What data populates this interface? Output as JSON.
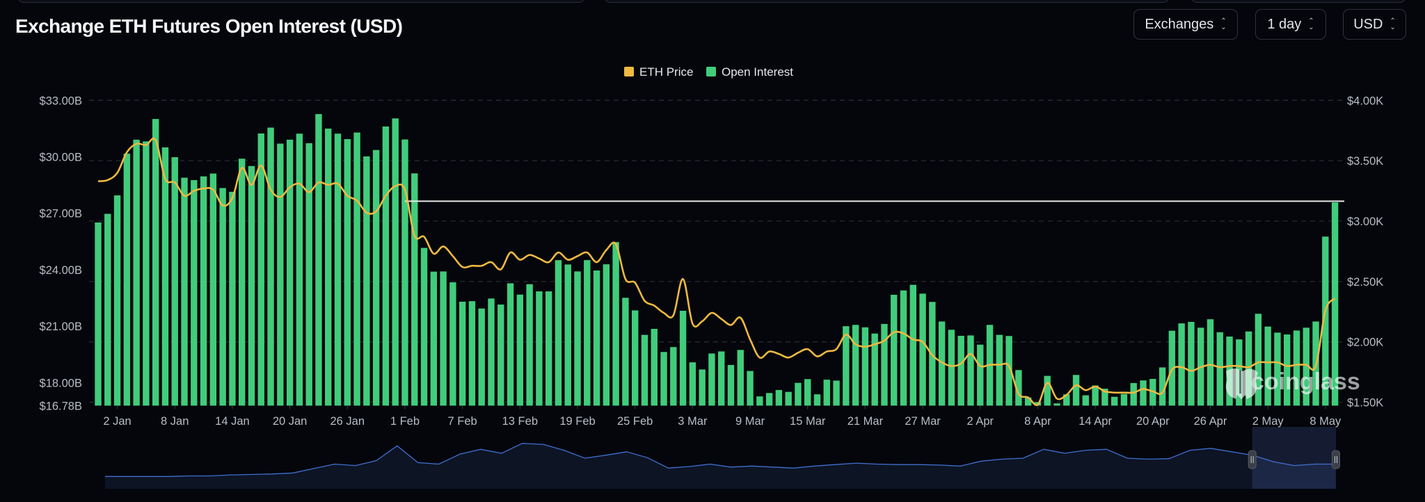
{
  "header": {
    "title": "Exchange ETH Futures Open Interest (USD)",
    "selects": [
      {
        "label": "Exchanges",
        "icon": "up-down-chevron-icon"
      },
      {
        "label": "1 day",
        "icon": "up-down-chevron-icon"
      },
      {
        "label": "USD",
        "icon": "up-down-chevron-icon"
      }
    ]
  },
  "watermark": "coinglass",
  "colors": {
    "background": "#04060b",
    "open_interest": "#41cc7b",
    "eth_price": "#f0b941",
    "reference_line": "#e8e8e8",
    "navigator_line": "#3f6fd1",
    "navigator_fill": "#0d1424"
  },
  "chart_data": {
    "type": "bar",
    "title": "Exchange ETH Futures Open Interest (USD)",
    "legend": {
      "placement": "top-center",
      "items": [
        "ETH Price",
        "Open Interest"
      ]
    },
    "grid": true,
    "categories": [
      "31 Dec",
      "1 Jan",
      "2 Jan",
      "3 Jan",
      "4 Jan",
      "5 Jan",
      "6 Jan",
      "7 Jan",
      "8 Jan",
      "9 Jan",
      "10 Jan",
      "11 Jan",
      "12 Jan",
      "13 Jan",
      "14 Jan",
      "15 Jan",
      "16 Jan",
      "17 Jan",
      "18 Jan",
      "19 Jan",
      "20 Jan",
      "21 Jan",
      "22 Jan",
      "23 Jan",
      "24 Jan",
      "25 Jan",
      "26 Jan",
      "27 Jan",
      "28 Jan",
      "29 Jan",
      "30 Jan",
      "31 Jan",
      "1 Feb",
      "2 Feb",
      "3 Feb",
      "4 Feb",
      "5 Feb",
      "6 Feb",
      "7 Feb",
      "8 Feb",
      "9 Feb",
      "10 Feb",
      "11 Feb",
      "12 Feb",
      "13 Feb",
      "14 Feb",
      "15 Feb",
      "16 Feb",
      "17 Feb",
      "18 Feb",
      "19 Feb",
      "20 Feb",
      "21 Feb",
      "22 Feb",
      "23 Feb",
      "24 Feb",
      "25 Feb",
      "26 Feb",
      "27 Feb",
      "28 Feb",
      "1 Mar",
      "2 Mar",
      "3 Mar",
      "4 Mar",
      "5 Mar",
      "6 Mar",
      "7 Mar",
      "8 Mar",
      "9 Mar",
      "10 Mar",
      "11 Mar",
      "12 Mar",
      "13 Mar",
      "14 Mar",
      "15 Mar",
      "16 Mar",
      "17 Mar",
      "18 Mar",
      "19 Mar",
      "20 Mar",
      "21 Mar",
      "22 Mar",
      "23 Mar",
      "24 Mar",
      "25 Mar",
      "26 Mar",
      "27 Mar",
      "28 Mar",
      "29 Mar",
      "30 Mar",
      "31 Mar",
      "1 Apr",
      "2 Apr",
      "3 Apr",
      "4 Apr",
      "5 Apr",
      "6 Apr",
      "7 Apr",
      "8 Apr",
      "9 Apr",
      "10 Apr",
      "11 Apr",
      "12 Apr",
      "13 Apr",
      "14 Apr",
      "15 Apr",
      "16 Apr",
      "17 Apr",
      "18 Apr",
      "19 Apr",
      "20 Apr",
      "21 Apr",
      "22 Apr",
      "23 Apr",
      "24 Apr",
      "25 Apr",
      "26 Apr",
      "27 Apr",
      "28 Apr",
      "29 Apr",
      "30 Apr",
      "1 May",
      "2 May",
      "3 May",
      "4 May",
      "5 May",
      "6 May",
      "7 May",
      "8 May",
      "9 May"
    ],
    "x_tick_labels": [
      "2 Jan",
      "8 Jan",
      "14 Jan",
      "20 Jan",
      "26 Jan",
      "1 Feb",
      "7 Feb",
      "13 Feb",
      "19 Feb",
      "25 Feb",
      "3 Mar",
      "9 Mar",
      "15 Mar",
      "21 Mar",
      "27 Mar",
      "2 Apr",
      "8 Apr",
      "14 Apr",
      "20 Apr",
      "26 Apr",
      "2 May",
      "8 May"
    ],
    "y_left": {
      "unit": "USD billions",
      "range": [
        16.78,
        33.0
      ],
      "tick_values": [
        33,
        30,
        27,
        24,
        21,
        18,
        16.78
      ],
      "tick_labels": [
        "$33.00B",
        "$30.00B",
        "$27.00B",
        "$24.00B",
        "$21.00B",
        "$18.00B",
        "$16.78B"
      ]
    },
    "y_right": {
      "unit": "USD thousands",
      "range": [
        1.472,
        4.0
      ],
      "tick_values": [
        4.0,
        3.5,
        3.0,
        2.5,
        2.0,
        1.5
      ],
      "tick_labels": [
        "$4.00K",
        "$3.50K",
        "$3.00K",
        "$2.50K",
        "$2.00K",
        "$1.50K"
      ]
    },
    "reference_line": {
      "value": 27.64,
      "axis": "left",
      "from_category": "1 Feb"
    },
    "series": [
      {
        "name": "Open Interest",
        "type": "bar",
        "axis": "left",
        "values": [
          26.51,
          26.97,
          27.95,
          30.17,
          30.91,
          30.82,
          32.01,
          30.5,
          29.98,
          28.89,
          28.76,
          28.96,
          29.11,
          28.34,
          28.14,
          29.9,
          29.51,
          31.24,
          31.55,
          30.7,
          30.91,
          31.23,
          30.72,
          32.27,
          31.5,
          31.23,
          30.94,
          31.29,
          30.02,
          30.36,
          31.61,
          32.04,
          30.92,
          29.12,
          25.16,
          23.9,
          23.91,
          23.33,
          22.3,
          22.33,
          21.94,
          22.47,
          22.15,
          23.28,
          22.68,
          23.23,
          22.85,
          22.85,
          24.51,
          24.28,
          23.91,
          24.51,
          23.96,
          24.29,
          25.47,
          22.51,
          21.84,
          20.54,
          20.86,
          19.63,
          19.89,
          21.82,
          19.08,
          18.7,
          19.55,
          19.66,
          18.94,
          19.74,
          18.62,
          17.27,
          17.45,
          17.61,
          17.51,
          17.99,
          18.19,
          17.38,
          18.16,
          18.11,
          21.0,
          21.07,
          20.94,
          20.61,
          21.12,
          22.67,
          22.9,
          23.2,
          22.73,
          22.29,
          21.25,
          20.81,
          20.49,
          20.51,
          20.02,
          21.07,
          20.54,
          20.48,
          18.67,
          17.21,
          16.97,
          18.36,
          16.9,
          17.38,
          18.41,
          17.33,
          17.85,
          17.68,
          17.25,
          17.4,
          17.98,
          18.12,
          18.2,
          18.81,
          20.76,
          21.15,
          21.23,
          20.92,
          21.37,
          20.68,
          20.45,
          20.3,
          20.72,
          21.66,
          20.98,
          20.66,
          20.56,
          20.77,
          20.92,
          21.25,
          25.76,
          27.58
        ]
      },
      {
        "name": "ETH Price",
        "type": "line",
        "axis": "right",
        "values": [
          3.33,
          3.34,
          3.4,
          3.57,
          3.64,
          3.63,
          3.67,
          3.35,
          3.32,
          3.21,
          3.25,
          3.27,
          3.26,
          3.13,
          3.19,
          3.44,
          3.3,
          3.46,
          3.26,
          3.2,
          3.28,
          3.31,
          3.24,
          3.32,
          3.3,
          3.31,
          3.21,
          3.17,
          3.07,
          3.08,
          3.21,
          3.29,
          3.26,
          2.88,
          2.87,
          2.73,
          2.79,
          2.71,
          2.62,
          2.63,
          2.63,
          2.66,
          2.6,
          2.74,
          2.68,
          2.72,
          2.69,
          2.66,
          2.74,
          2.68,
          2.71,
          2.74,
          2.66,
          2.76,
          2.81,
          2.52,
          2.49,
          2.34,
          2.3,
          2.24,
          2.22,
          2.52,
          2.15,
          2.17,
          2.24,
          2.19,
          2.14,
          2.2,
          2.02,
          1.87,
          1.92,
          1.9,
          1.87,
          1.91,
          1.94,
          1.88,
          1.92,
          1.94,
          2.06,
          1.98,
          1.96,
          1.98,
          2.01,
          2.08,
          2.07,
          2.02,
          2.0,
          1.89,
          1.83,
          1.8,
          1.82,
          1.9,
          1.8,
          1.81,
          1.81,
          1.8,
          1.57,
          1.54,
          1.48,
          1.66,
          1.53,
          1.56,
          1.64,
          1.6,
          1.63,
          1.59,
          1.58,
          1.58,
          1.58,
          1.61,
          1.59,
          1.58,
          1.77,
          1.79,
          1.76,
          1.79,
          1.81,
          1.79,
          1.8,
          1.8,
          1.79,
          1.83,
          1.83,
          1.83,
          1.8,
          1.81,
          1.81,
          1.8,
          2.26,
          2.36
        ]
      }
    ],
    "navigator": {
      "relative_levels": [
        0.25,
        0.25,
        0.25,
        0.25,
        0.26,
        0.26,
        0.28,
        0.29,
        0.3,
        0.32,
        0.41,
        0.5,
        0.47,
        0.57,
        0.87,
        0.53,
        0.5,
        0.7,
        0.8,
        0.72,
        0.92,
        0.9,
        0.78,
        0.62,
        0.68,
        0.75,
        0.63,
        0.42,
        0.45,
        0.5,
        0.44,
        0.46,
        0.44,
        0.42,
        0.46,
        0.49,
        0.52,
        0.5,
        0.49,
        0.49,
        0.48,
        0.46,
        0.56,
        0.6,
        0.62,
        0.8,
        0.72,
        0.78,
        0.8,
        0.62,
        0.6,
        0.61,
        0.78,
        0.82,
        0.75,
        0.68,
        0.55,
        0.47,
        0.5,
        0.5
      ],
      "selected_fraction": [
        0.932,
        1.0
      ]
    }
  }
}
